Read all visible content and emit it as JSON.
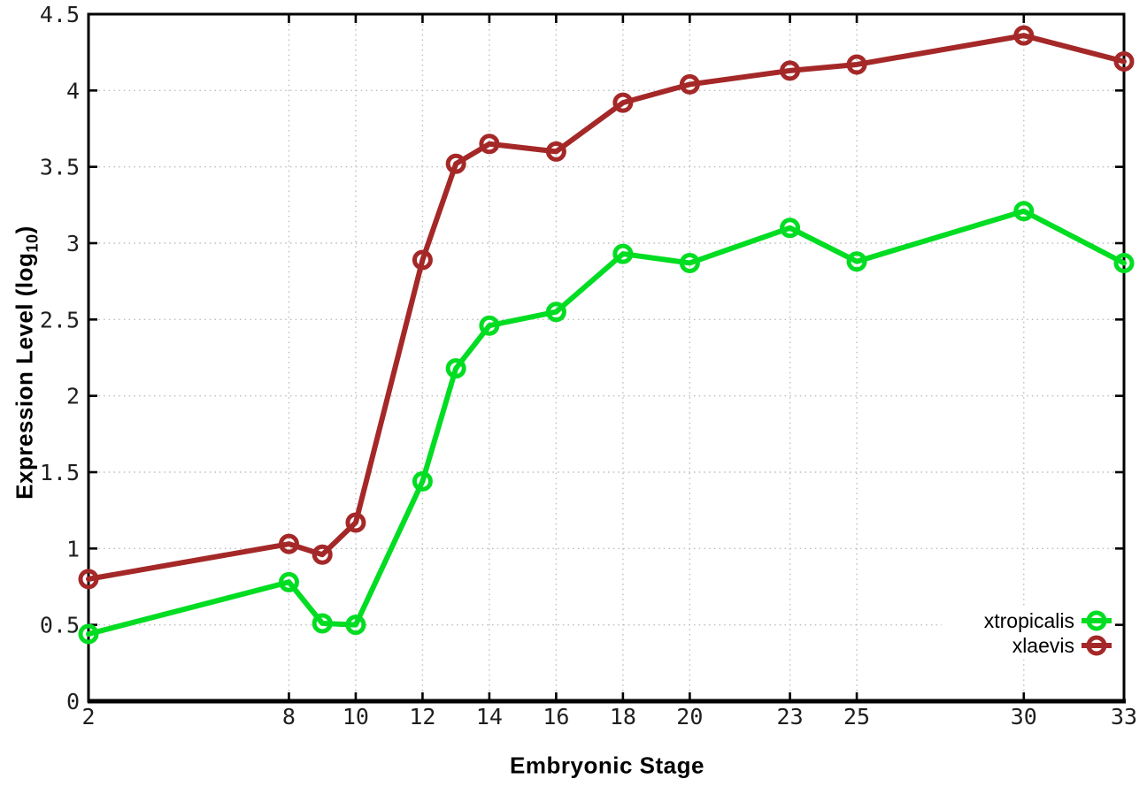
{
  "chart_data": {
    "type": "line",
    "title": "",
    "xlabel": "Embryonic Stage",
    "ylabel": "Expression Level (log10)",
    "ylabel_parts": {
      "pre": "Expression Level (log",
      "sub": "10",
      "post": ")"
    },
    "x": [
      2,
      8,
      9,
      10,
      12,
      13,
      14,
      16,
      18,
      20,
      23,
      25,
      30,
      33
    ],
    "series": [
      {
        "name": "xtropicalis",
        "color": "#00dd22",
        "values": [
          0.44,
          0.78,
          0.51,
          0.5,
          1.44,
          2.18,
          2.46,
          2.55,
          2.93,
          2.87,
          3.1,
          2.88,
          3.21,
          2.87
        ]
      },
      {
        "name": "xlaevis",
        "color": "#a52828",
        "values": [
          0.8,
          1.03,
          0.96,
          1.17,
          2.89,
          3.52,
          3.65,
          3.6,
          3.92,
          4.04,
          4.13,
          4.17,
          4.36,
          4.19
        ]
      }
    ],
    "xlim": [
      2,
      33
    ],
    "ylim": [
      0,
      4.5
    ],
    "xticks": {
      "values": [
        2,
        8,
        10,
        12,
        14,
        16,
        18,
        20,
        23,
        25,
        30,
        33
      ],
      "labels": [
        "2",
        "8",
        "10",
        "12",
        "14",
        "16",
        "18",
        "20",
        "23",
        "25",
        "30",
        "33"
      ]
    },
    "yticks": {
      "values": [
        0,
        0.5,
        1,
        1.5,
        2,
        2.5,
        3,
        3.5,
        4,
        4.5
      ],
      "labels": [
        "0",
        "0.5",
        "1",
        "1.5",
        "2",
        "2.5",
        "3",
        "3.5",
        "4",
        "4.5"
      ]
    },
    "grid": true,
    "marker": "open-circle",
    "legend": {
      "position": "bottom-right",
      "entries": [
        "xtropicalis",
        "xlaevis"
      ]
    },
    "colors": {
      "background": "#ffffff",
      "grid": "#bdbdbd",
      "tick_text": "#1f1f1f",
      "axis": "#000000"
    }
  }
}
